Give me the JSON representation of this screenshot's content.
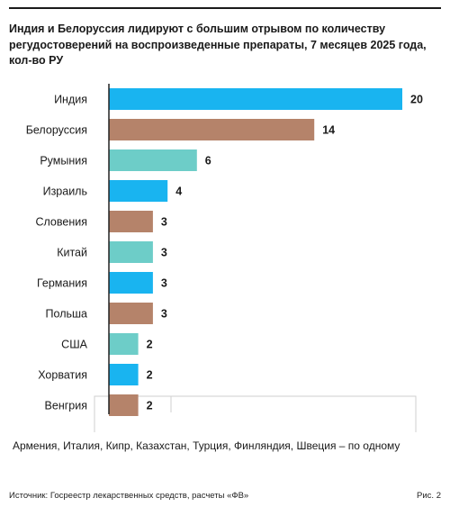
{
  "title": "Индия и Белоруссия лидируют с большим отрывом по количеству регудостоверений на воспроизведенные препараты, 7 месяцев 2025 года, кол-во РУ",
  "footnote": "Армения, Италия, Кипр, Казахстан, Турция, Финляндия, Швеция – по одному",
  "source": "Источник: Госреестр лекарственных средств, расчеты «ФВ»",
  "figure_label": "Рис. 2",
  "colors": {
    "blue": "#19b4f0",
    "brown": "#b5836a",
    "teal": "#6dcdc8",
    "axis": "#222222"
  },
  "chart_data": {
    "type": "bar",
    "orientation": "horizontal",
    "title": "Индия и Белоруссия лидируют с большим отрывом по количеству регудостоверений на воспроизведенные препараты, 7 месяцев 2025 года, кол-во РУ",
    "categories": [
      "Индия",
      "Белоруссия",
      "Румыния",
      "Израиль",
      "Словения",
      "Китай",
      "Германия",
      "Польша",
      "США",
      "Хорватия",
      "Венгрия"
    ],
    "values": [
      20,
      14,
      6,
      4,
      3,
      3,
      3,
      3,
      2,
      2,
      2
    ],
    "bar_colors": [
      "blue",
      "brown",
      "teal",
      "blue",
      "brown",
      "teal",
      "blue",
      "brown",
      "teal",
      "blue",
      "brown"
    ],
    "xlim": [
      0,
      20
    ],
    "xlabel": "",
    "ylabel": "",
    "grid": false,
    "legend": "none"
  }
}
